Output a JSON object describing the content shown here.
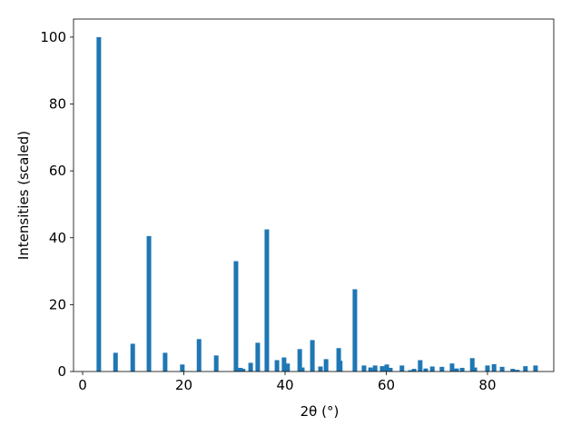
{
  "chart_data": {
    "type": "bar",
    "xlabel": "2θ (°)",
    "ylabel": "Intensities (scaled)",
    "x": [
      3.2,
      6.5,
      9.9,
      13.1,
      16.3,
      19.7,
      23.0,
      26.4,
      30.3,
      31.2,
      31.7,
      33.2,
      34.6,
      36.4,
      38.4,
      39.8,
      40.5,
      42.9,
      43.4,
      45.4,
      47.0,
      48.1,
      50.6,
      50.9,
      53.8,
      55.6,
      56.9,
      57.8,
      59.2,
      60.1,
      60.8,
      63.1,
      64.8,
      65.5,
      66.7,
      67.8,
      69.1,
      71.0,
      73.0,
      73.9,
      75.0,
      77.0,
      77.5,
      80.0,
      81.3,
      82.9,
      85.0,
      85.9,
      87.5,
      89.5
    ],
    "values": [
      100,
      5.6,
      8.3,
      40.5,
      5.6,
      2.1,
      9.7,
      4.8,
      33,
      1.1,
      0.8,
      2.6,
      8.6,
      42.5,
      3.4,
      4.2,
      2.4,
      6.7,
      1.2,
      9.4,
      1.5,
      3.7,
      7.0,
      3.2,
      24.6,
      1.8,
      1.2,
      1.8,
      1.6,
      2.1,
      1.1,
      1.8,
      0.4,
      0.8,
      3.4,
      0.9,
      1.5,
      1.4,
      2.4,
      0.9,
      1.1,
      4.0,
      1.2,
      1.8,
      2.2,
      1.4,
      0.8,
      0.5,
      1.6,
      1.8
    ],
    "color": "#1f77b4",
    "xlim": [
      -1.8,
      93.1
    ],
    "xticks": [
      0,
      20,
      40,
      60,
      80
    ],
    "ylim": [
      0,
      105.4
    ],
    "yticks": [
      0,
      20,
      40,
      60,
      80,
      100
    ]
  }
}
